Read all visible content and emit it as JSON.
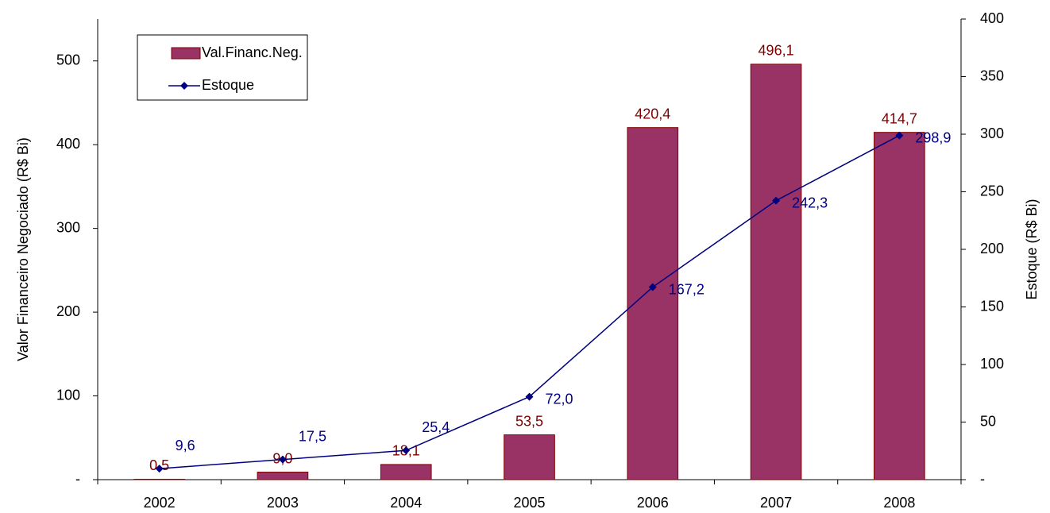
{
  "chart_data": {
    "type": "bar-line",
    "categories": [
      "2002",
      "2003",
      "2004",
      "2005",
      "2006",
      "2007",
      "2008"
    ],
    "y_label": "Valor Financeiro Negociado (R$ Bi)",
    "y2_label": "Estoque (R$ Bi)",
    "ylim": [
      0,
      550
    ],
    "yticks": [
      {
        "value": 0,
        "label": "-"
      },
      100,
      200,
      300,
      400,
      500
    ],
    "y2lim": [
      0,
      400
    ],
    "y2ticks": [
      {
        "value": 0,
        "label": "-"
      },
      50,
      100,
      150,
      200,
      250,
      300,
      350,
      400
    ],
    "series": [
      {
        "name": "Val.Financ.Neg.",
        "type": "bar",
        "color": "#993366",
        "values": [
          0.5,
          9.0,
          18.1,
          53.5,
          420.4,
          496.1,
          414.7
        ],
        "value_labels": [
          "0,5",
          "9,0",
          "18,1",
          "53,5",
          "420,4",
          "496,1",
          "414,7"
        ]
      },
      {
        "name": "Estoque",
        "type": "line",
        "axis": "y2",
        "color": "#000080",
        "values": [
          9.6,
          17.5,
          25.4,
          72.0,
          167.2,
          242.3,
          298.9
        ],
        "value_labels": [
          "9,6",
          "17,5",
          "25,4",
          "72,0",
          "167,2",
          "242,3",
          "298,9"
        ]
      }
    ]
  }
}
